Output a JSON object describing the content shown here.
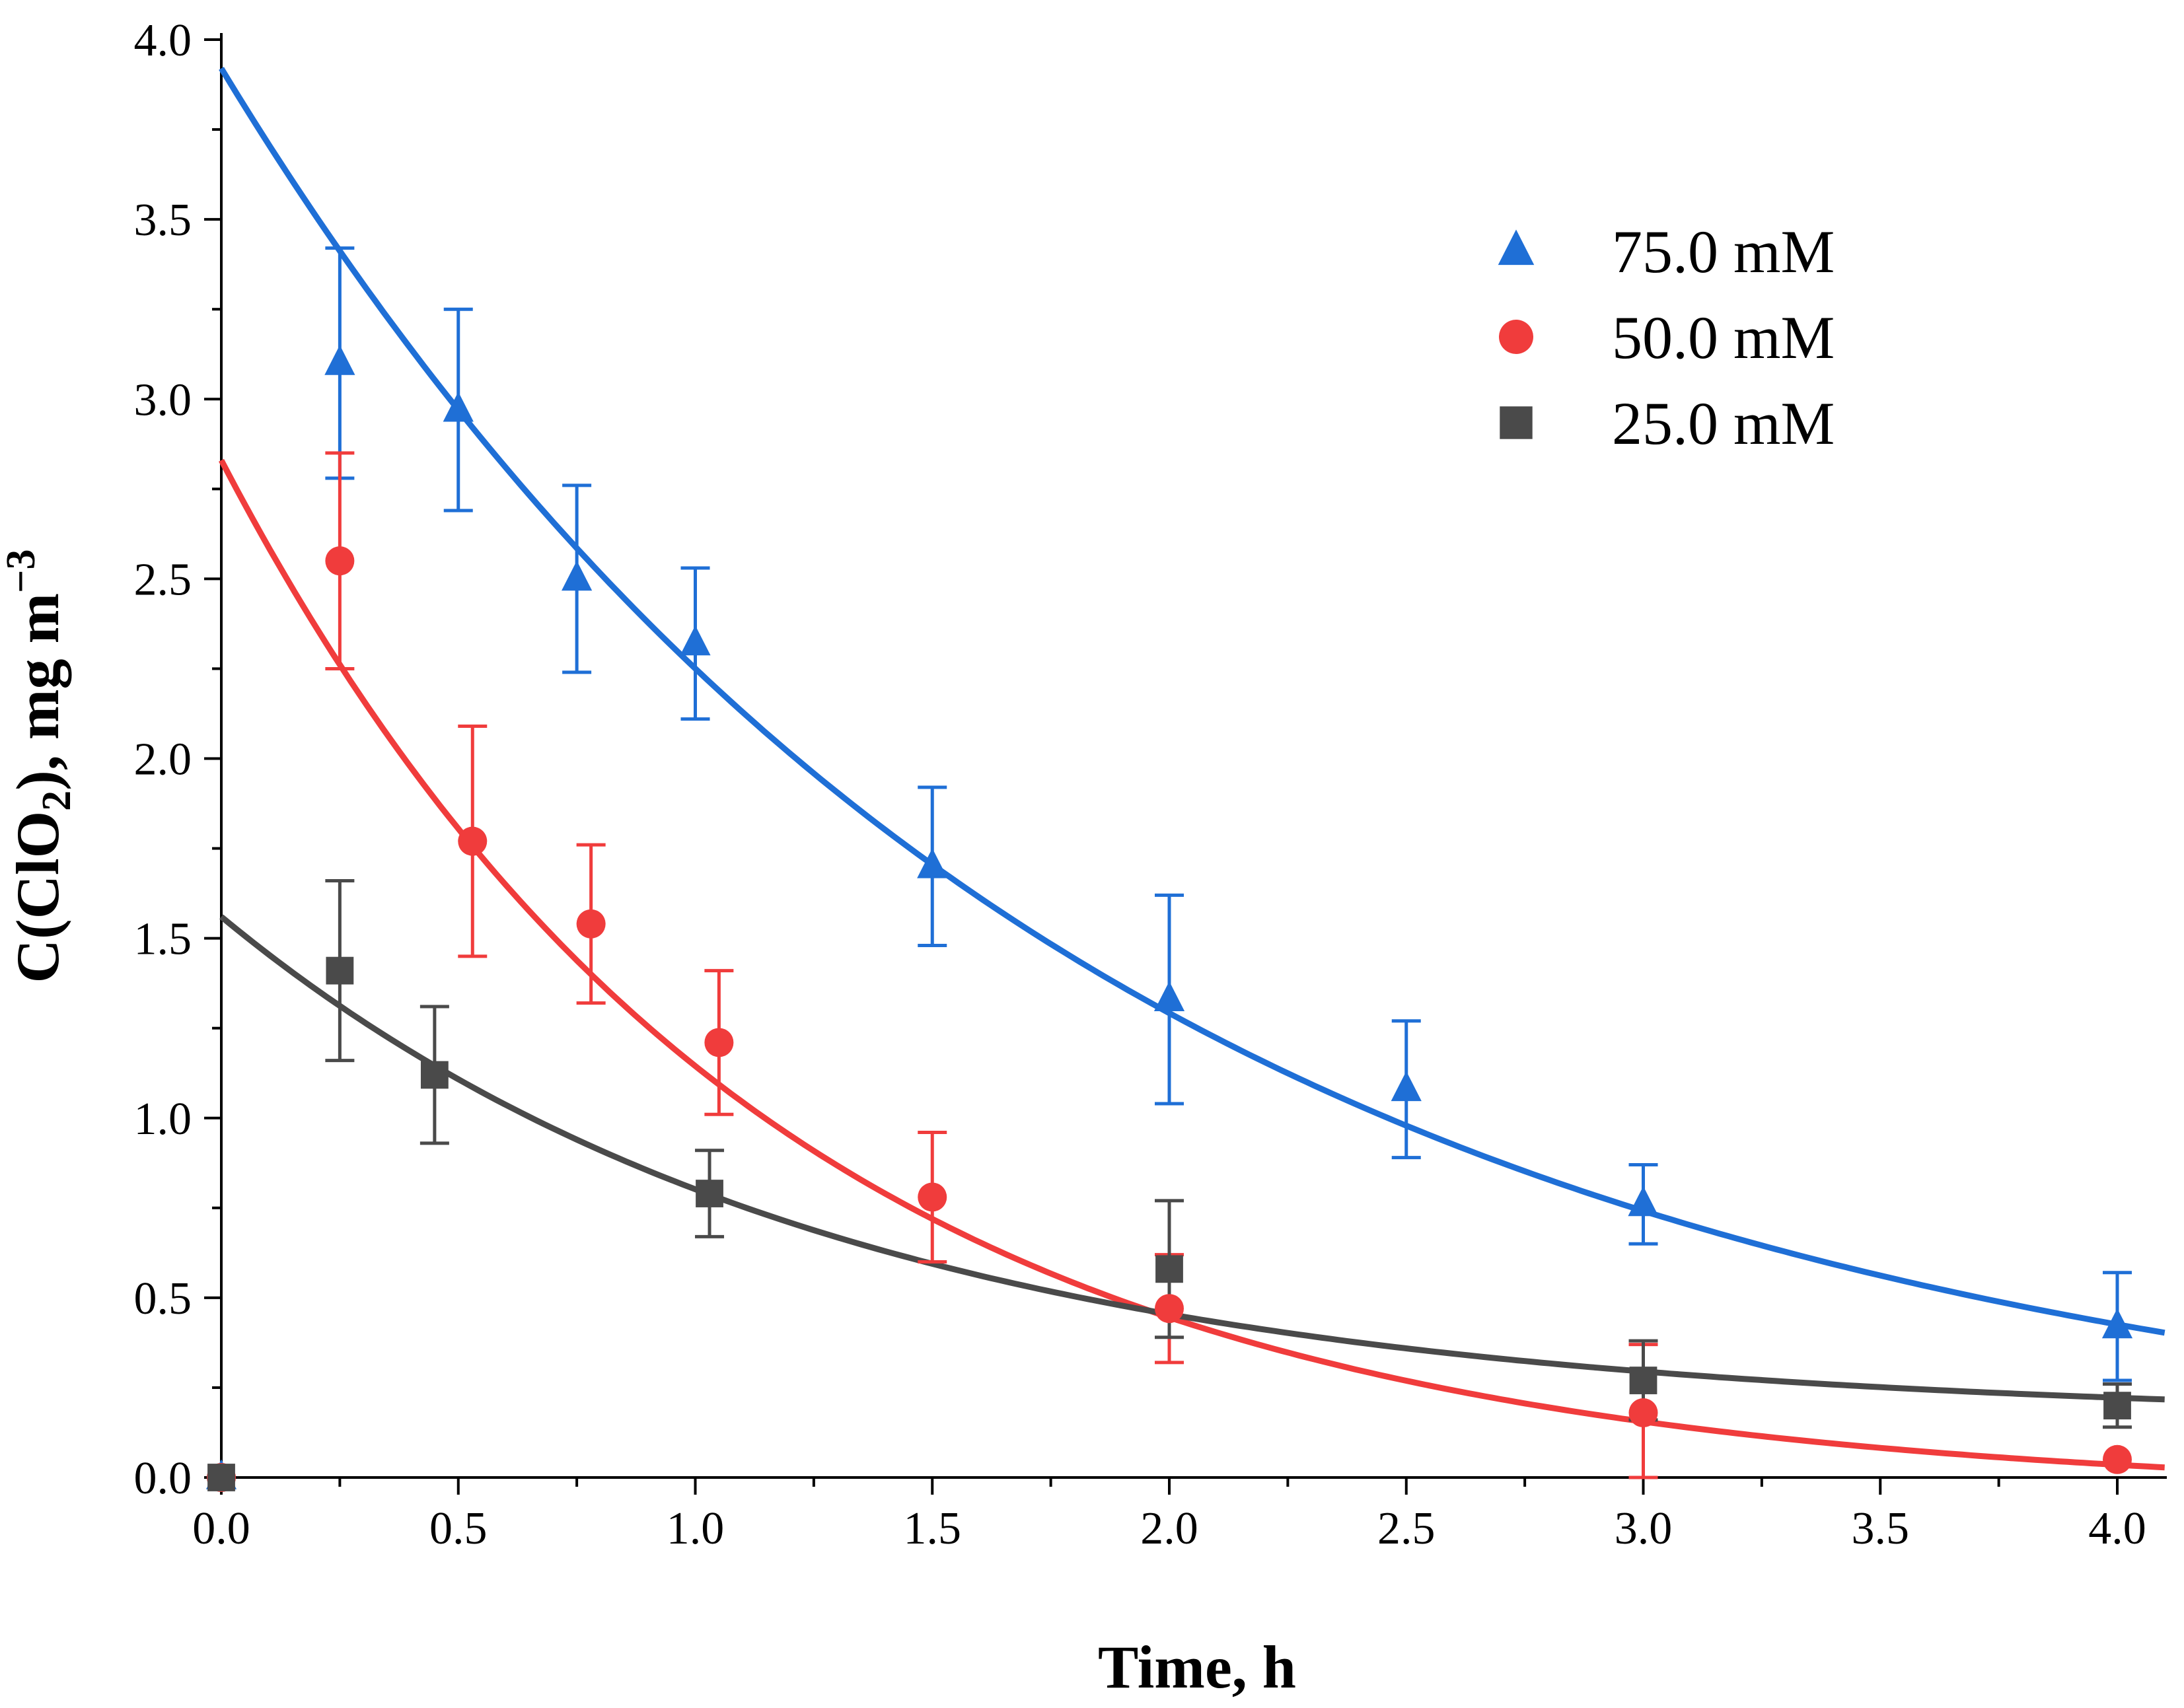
{
  "chart_data": {
    "type": "scatter",
    "xlabel": "Time, h",
    "ylabel": "C(ClO",
    "ylabel_sub": "2",
    "ylabel_tail": "), mg m",
    "ylabel_sup": "−3",
    "xlim": [
      0,
      4.1
    ],
    "ylim": [
      0,
      4.0
    ],
    "xticks": [
      0.0,
      0.5,
      1.0,
      1.5,
      2.0,
      2.5,
      3.0,
      3.5,
      4.0
    ],
    "xtick_labels": [
      "0.0",
      "0.5",
      "1.0",
      "1.5",
      "2.0",
      "2.5",
      "3.0",
      "3.5",
      "4.0"
    ],
    "yticks": [
      0.0,
      0.5,
      1.0,
      1.5,
      2.0,
      2.5,
      3.0,
      3.5,
      4.0
    ],
    "ytick_labels": [
      "0.0",
      "0.5",
      "1.0",
      "1.5",
      "2.0",
      "2.5",
      "3.0",
      "3.5",
      "4.0"
    ],
    "legend_position": "top-right",
    "series": [
      {
        "name": "75.0 mM",
        "marker": "triangle",
        "color": "#1f6fd6",
        "points": [
          {
            "x": 0.0,
            "y": 0.0,
            "err": 0
          },
          {
            "x": 0.25,
            "y": 3.1,
            "err": 0.32
          },
          {
            "x": 0.5,
            "y": 2.97,
            "err": 0.28
          },
          {
            "x": 0.75,
            "y": 2.5,
            "err": 0.26
          },
          {
            "x": 1.0,
            "y": 2.32,
            "err": 0.21
          },
          {
            "x": 1.5,
            "y": 1.7,
            "err": 0.22
          },
          {
            "x": 2.0,
            "y": 1.33,
            "err": 0.29
          },
          {
            "x": 2.5,
            "y": 1.08,
            "err": 0.19
          },
          {
            "x": 3.0,
            "y": 0.76,
            "err": 0.11
          },
          {
            "x": 4.0,
            "y": 0.42,
            "err": 0.15
          }
        ],
        "fit": {
          "c0": 3.92,
          "k": 0.555,
          "c_inf": 0.0
        }
      },
      {
        "name": "50.0 mM",
        "marker": "circle",
        "color": "#f03c3c",
        "points": [
          {
            "x": 0.0,
            "y": 0.0,
            "err": 0
          },
          {
            "x": 0.25,
            "y": 2.55,
            "err": 0.3
          },
          {
            "x": 0.53,
            "y": 1.77,
            "err": 0.32
          },
          {
            "x": 0.78,
            "y": 1.54,
            "err": 0.22
          },
          {
            "x": 1.05,
            "y": 1.21,
            "err": 0.2
          },
          {
            "x": 1.5,
            "y": 0.78,
            "err": 0.18
          },
          {
            "x": 2.0,
            "y": 0.47,
            "err": 0.15
          },
          {
            "x": 3.0,
            "y": 0.18,
            "err": 0.19
          },
          {
            "x": 4.0,
            "y": 0.05,
            "err": 0
          }
        ],
        "fit": {
          "c0": 2.83,
          "k": 0.88,
          "c_inf": -0.05
        }
      },
      {
        "name": "25.0 mM",
        "marker": "square",
        "color": "#4a4a4a",
        "points": [
          {
            "x": 0.0,
            "y": 0.0,
            "err": 0
          },
          {
            "x": 0.25,
            "y": 1.41,
            "err": 0.25
          },
          {
            "x": 0.45,
            "y": 1.12,
            "err": 0.19
          },
          {
            "x": 1.03,
            "y": 0.79,
            "err": 0.12
          },
          {
            "x": 2.0,
            "y": 0.58,
            "err": 0.19
          },
          {
            "x": 3.0,
            "y": 0.27,
            "err": 0.11
          },
          {
            "x": 4.0,
            "y": 0.2,
            "err": 0.06
          }
        ],
        "fit": {
          "c0": 1.56,
          "k": 0.78,
          "c_inf": 0.16
        }
      }
    ]
  }
}
